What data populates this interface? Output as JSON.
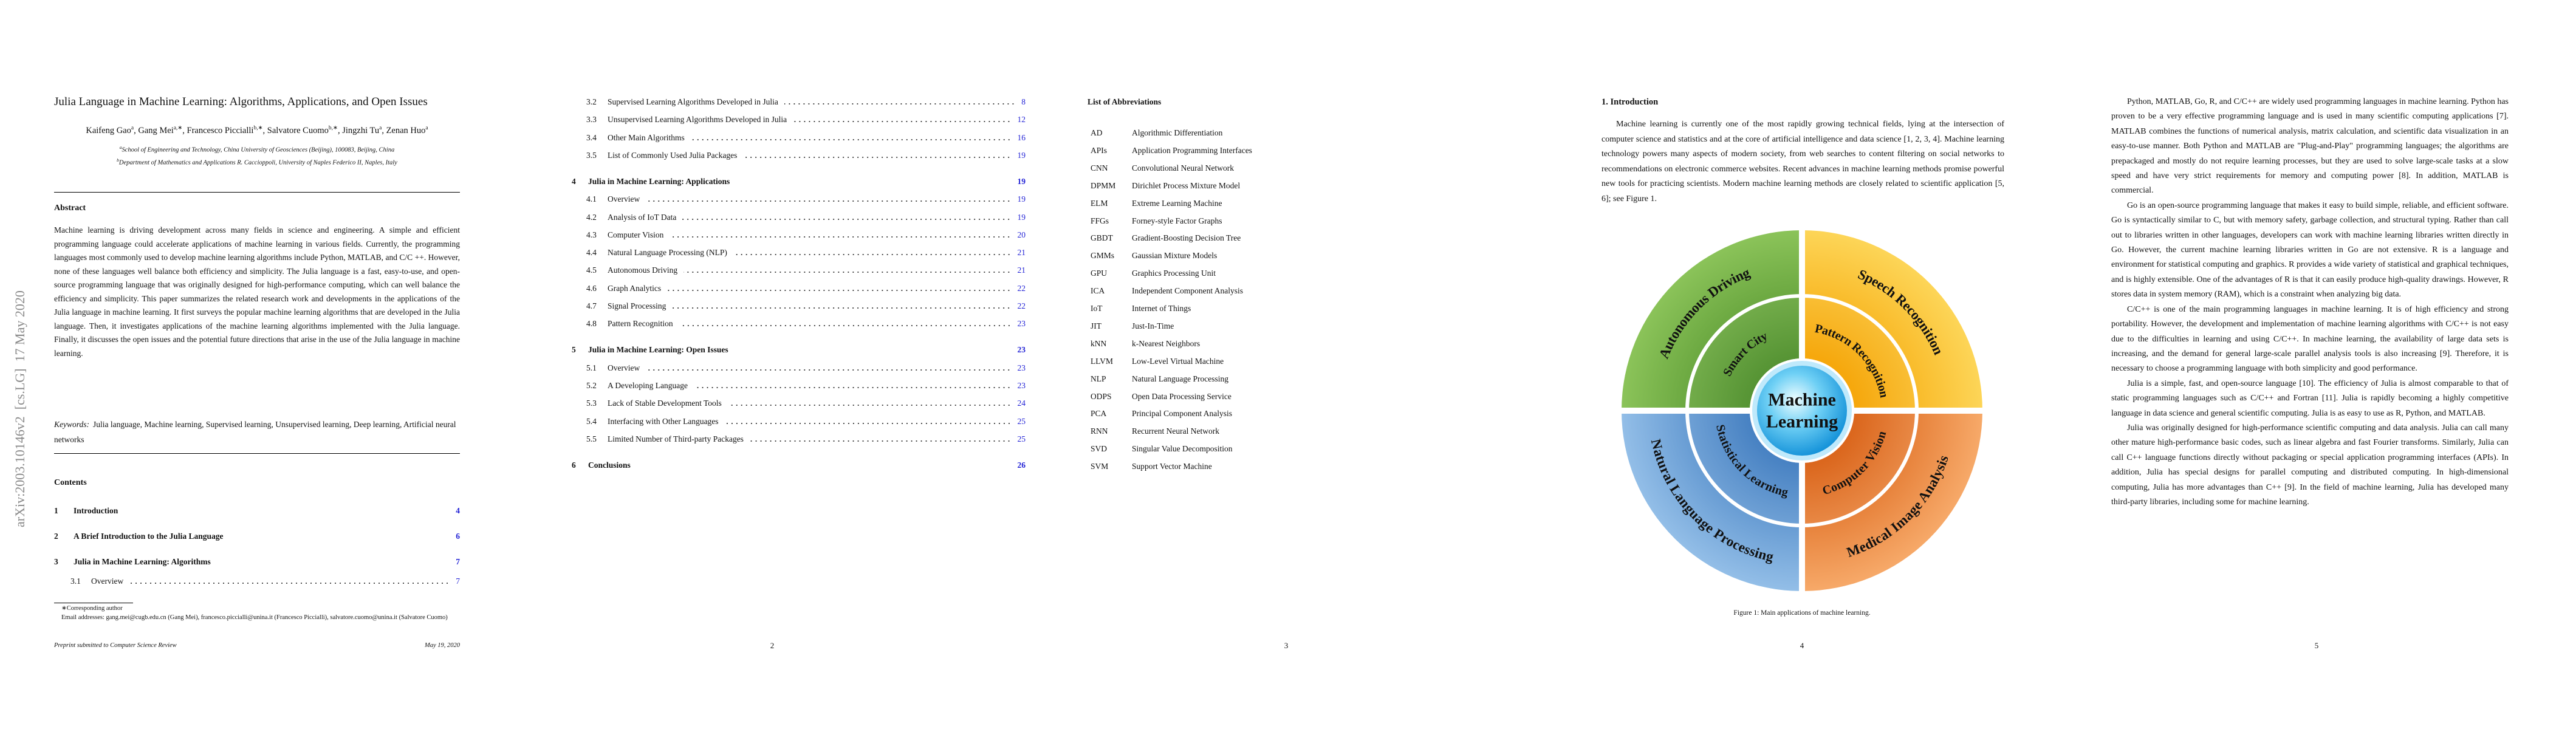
{
  "arxiv_stamp": "arXiv:2003.10146v2  [cs.LG]  17 May 2020",
  "page1": {
    "title": "Julia Language in Machine Learning: Algorithms, Applications, and Open Issues",
    "authors": [
      {
        "text": "Kaifeng Gao",
        "sup": "a"
      },
      {
        "text": ", Gang Mei",
        "sup": "a,∗"
      },
      {
        "text": ", Francesco Piccialli",
        "sup": "b,∗"
      },
      {
        "text": ", Salvatore Cuomo",
        "sup": "b,∗"
      },
      {
        "text": ", Jingzhi Tu",
        "sup": "a"
      },
      {
        "text": ", Zenan Huo",
        "sup": "a"
      }
    ],
    "affiliations": [
      {
        "sup": "a",
        "text": "School of Engineering and Technology, China University of Geosciences (Beijing), 100083, Beijing, China"
      },
      {
        "sup": "b",
        "text": "Department of Mathematics and Applications R. Caccioppoli, University of Naples Federico II, Naples, Italy"
      }
    ],
    "abstract_heading": "Abstract",
    "abstract": "Machine learning is driving development across many fields in science and engineering. A simple and efficient programming language could accelerate applications of machine learning in various fields. Currently, the programming languages most commonly used to develop machine learning algorithms include Python, MATLAB, and C/C ++. However, none of these languages well balance both efficiency and simplicity. The Julia language is a fast, easy-to-use, and open-source programming language that was originally designed for high-performance computing, which can well balance the efficiency and simplicity. This paper summarizes the related research work and developments in the applications of the Julia language in machine learning. It first surveys the popular machine learning algorithms that are developed in the Julia language. Then, it investigates applications of the machine learning algorithms implemented with the Julia language. Finally, it discusses the open issues and the potential future directions that arise in the use of the Julia language in machine learning.",
    "keywords_label": "Keywords:",
    "keywords": "Julia language, Machine learning, Supervised learning, Unsupervised learning, Deep learning, Artificial neural networks",
    "contents_heading": "Contents",
    "toc": [
      {
        "number": "1",
        "title": "Introduction",
        "page": 4
      },
      {
        "number": "2",
        "title": "A Brief Introduction to the Julia Language",
        "page": 6
      },
      {
        "number": "3",
        "title": "Julia in Machine Learning: Algorithms",
        "page": 7
      },
      {
        "number": "3.1",
        "title": "Overview",
        "page": 7
      }
    ],
    "footnote": "∗Corresponding author",
    "emails": "Email addresses: gang.mei@cugb.edu.cn (Gang Mei), francesco.piccialli@unina.it (Francesco Piccialli), salvatore.cuomo@unina.it (Salvatore Cuomo)",
    "footer_left": "Preprint submitted to Computer Science Review",
    "footer_right": "May 19, 2020"
  },
  "page2": {
    "toc": [
      {
        "number": "3.2",
        "title": "Supervised Learning Algorithms Developed in Julia",
        "page": 8
      },
      {
        "number": "3.3",
        "title": "Unsupervised Learning Algorithms Developed in Julia",
        "page": 12
      },
      {
        "number": "3.4",
        "title": "Other Main Algorithms",
        "page": 16
      },
      {
        "number": "3.5",
        "title": "List of Commonly Used Julia Packages",
        "page": 19
      },
      {
        "number": "4",
        "title": "Julia in Machine Learning: Applications",
        "page": 19
      },
      {
        "number": "4.1",
        "title": "Overview",
        "page": 19
      },
      {
        "number": "4.2",
        "title": "Analysis of IoT Data",
        "page": 19
      },
      {
        "number": "4.3",
        "title": "Computer Vision",
        "page": 20
      },
      {
        "number": "4.4",
        "title": "Natural Language Processing (NLP)",
        "page": 21
      },
      {
        "number": "4.5",
        "title": "Autonomous Driving",
        "page": 21
      },
      {
        "number": "4.6",
        "title": "Graph Analytics",
        "page": 22
      },
      {
        "number": "4.7",
        "title": "Signal Processing",
        "page": 22
      },
      {
        "number": "4.8",
        "title": "Pattern Recognition",
        "page": 23
      },
      {
        "number": "5",
        "title": "Julia in Machine Learning: Open Issues",
        "page": 23
      },
      {
        "number": "5.1",
        "title": "Overview",
        "page": 23
      },
      {
        "number": "5.2",
        "title": "A Developing Language",
        "page": 23
      },
      {
        "number": "5.3",
        "title": "Lack of Stable Development Tools",
        "page": 24
      },
      {
        "number": "5.4",
        "title": "Interfacing with Other Languages",
        "page": 25
      },
      {
        "number": "5.5",
        "title": "Limited Number of Third-party Packages",
        "page": 25
      },
      {
        "number": "6",
        "title": "Conclusions",
        "page": 26
      }
    ],
    "page_number": 2
  },
  "page3": {
    "heading": "List of Abbreviations",
    "abbreviations": [
      [
        "AD",
        "Algorithmic Differentiation"
      ],
      [
        "APIs",
        "Application Programming Interfaces"
      ],
      [
        "CNN",
        "Convolutional Neural Network"
      ],
      [
        "DPMM",
        "Dirichlet Process Mixture Model"
      ],
      [
        "ELM",
        "Extreme Learning Machine"
      ],
      [
        "FFGs",
        "Forney-style Factor Graphs"
      ],
      [
        "GBDT",
        "Gradient-Boosting Decision Tree"
      ],
      [
        "GMMs",
        "Gaussian Mixture Models"
      ],
      [
        "GPU",
        "Graphics Processing Unit"
      ],
      [
        "ICA",
        "Independent Component Analysis"
      ],
      [
        "IoT",
        "Internet of Things"
      ],
      [
        "JIT",
        "Just-In-Time"
      ],
      [
        "kNN",
        "k-Nearest Neighbors"
      ],
      [
        "LLVM",
        "Low-Level Virtual Machine"
      ],
      [
        "NLP",
        "Natural Language Processing"
      ],
      [
        "ODPS",
        "Open Data Processing Service"
      ],
      [
        "PCA",
        "Principal Component Analysis"
      ],
      [
        "RNN",
        "Recurrent Neural Network"
      ],
      [
        "SVD",
        "Singular Value Decomposition"
      ],
      [
        "SVM",
        "Support Vector Machine"
      ]
    ],
    "page_number": 3
  },
  "page4": {
    "heading": "1. Introduction",
    "paragraph": "Machine learning is currently one of the most rapidly growing technical fields, lying at the intersection of computer science and statistics and at the core of artificial intelligence and data science [1, 2, 3, 4]. Machine learning technology powers many aspects of modern society, from web searches to content filtering on social networks to recommendations on electronic commerce websites. Recent advances in machine learning methods promise powerful new tools for practicing scientists. Modern machine learning methods are closely related to scientific application [5, 6]; see Figure 1.",
    "figure": {
      "center": [
        "Machine",
        "Learning"
      ],
      "inner": [
        "Smart City",
        "Pattern Recognition",
        "Computer Vision",
        "Statistical Learning"
      ],
      "outer": [
        "Autonomous Driving",
        "Speech Recognition",
        "Medical Image Analysis",
        "Natural Language Processing"
      ]
    },
    "caption": "Figure 1: Main applications of machine learning.",
    "page_number": 4
  },
  "page5": {
    "paragraphs": [
      "Python, MATLAB, Go, R, and C/C++ are widely used programming languages in machine learning. Python has proven to be a very effective programming language and is used in many scientific computing applications [7]. MATLAB combines the functions of numerical analysis, matrix calculation, and scientific data visualization in an easy-to-use manner. Both Python and MATLAB are \"Plug-and-Play\" programming languages; the algorithms are prepackaged and mostly do not require learning processes, but they are used to solve large-scale tasks at a slow speed and have very strict requirements for memory and computing power [8]. In addition, MATLAB is commercial.",
      "Go is an open-source programming language that makes it easy to build simple, reliable, and efficient software. Go is syntactically similar to C, but with memory safety, garbage collection, and structural typing. Rather than call out to libraries written in other languages, developers can work with machine learning libraries written directly in Go. However, the current machine learning libraries written in Go are not extensive. R is a language and environment for statistical computing and graphics. R provides a wide variety of statistical and graphical techniques, and is highly extensible. One of the advantages of R is that it can easily produce high-quality drawings. However, R stores data in system memory (RAM), which is a constraint when analyzing big data.",
      "C/C++ is one of the main programming languages in machine learning. It is of high efficiency and strong portability. However, the development and implementation of machine learning algorithms with C/C++ is not easy due to the difficulties in learning and using C/C++. In machine learning, the availability of large data sets is increasing, and the demand for general large-scale parallel analysis tools is also increasing [9]. Therefore, it is necessary to choose a programming language with both simplicity and good performance.",
      "Julia is a simple, fast, and open-source language [10]. The efficiency of Julia is almost comparable to that of static programming languages such as C/C++ and Fortran [11]. Julia is rapidly becoming a highly competitive language in data science and general scientific computing. Julia is as easy to use as R, Python, and MATLAB.",
      "Julia was originally designed for high-performance scientific computing and data analysis. Julia can call many other mature high-performance basic codes, such as linear algebra and fast Fourier transforms. Similarly, Julia can call C++ language functions directly without packaging or special application programming interfaces (APIs). In addition, Julia has special designs for parallel computing and distributed computing. In high-dimensional computing, Julia has more advantages than C++ [9]. In the field of machine learning, Julia has developed many third-party libraries, including some for machine learning."
    ],
    "page_number": 5
  }
}
